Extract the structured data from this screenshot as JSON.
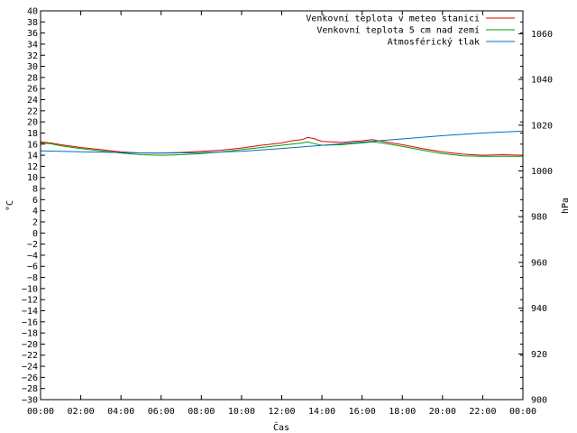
{
  "chart_data": {
    "type": "line",
    "xlabel": "Čas",
    "ylabel": "°C",
    "y2label": "hPa",
    "x_ticks": [
      "00:00",
      "02:00",
      "04:00",
      "06:00",
      "08:00",
      "10:00",
      "12:00",
      "14:00",
      "16:00",
      "18:00",
      "20:00",
      "22:00",
      "00:00"
    ],
    "x_range_hours": [
      0,
      24
    ],
    "ylim": [
      -30,
      40
    ],
    "y_step": 2,
    "y2lim": [
      900,
      1070
    ],
    "y2_ticks": [
      900,
      920,
      940,
      960,
      980,
      1000,
      1020,
      1040,
      1060
    ],
    "grid": false,
    "legend_position": "top-right",
    "series": [
      {
        "name": "Venkovní teplota v meteo stanici",
        "axis": "left",
        "color": "#e00000",
        "x": [
          0,
          0.5,
          1,
          2,
          3,
          4,
          5,
          6,
          7,
          8,
          9,
          10,
          11,
          12,
          12.5,
          13,
          13.3,
          13.6,
          14,
          15,
          15.5,
          16,
          16.5,
          17,
          18,
          19,
          20,
          21,
          22,
          23,
          24
        ],
        "y": [
          16.4,
          16.2,
          15.9,
          15.4,
          15.0,
          14.6,
          14.4,
          14.4,
          14.5,
          14.7,
          14.9,
          15.3,
          15.8,
          16.2,
          16.6,
          16.8,
          17.2,
          17.0,
          16.5,
          16.3,
          16.5,
          16.6,
          16.8,
          16.5,
          15.9,
          15.2,
          14.6,
          14.2,
          14.0,
          14.1,
          14.0
        ]
      },
      {
        "name": "Venkovní teplota 5 cm nad zemí",
        "axis": "left",
        "color": "#00a000",
        "x": [
          0,
          0.5,
          1,
          2,
          3,
          4,
          5,
          6,
          7,
          8,
          9,
          10,
          11,
          12,
          12.5,
          13,
          13.3,
          13.6,
          14,
          15,
          15.5,
          16,
          16.5,
          17,
          18,
          19,
          20,
          21,
          22,
          23,
          24
        ],
        "y": [
          16.2,
          16.1,
          15.7,
          15.2,
          14.8,
          14.4,
          14.1,
          14.0,
          14.1,
          14.3,
          14.6,
          15.0,
          15.4,
          15.8,
          16.0,
          16.2,
          16.4,
          16.1,
          15.8,
          15.9,
          16.1,
          16.2,
          16.4,
          16.2,
          15.6,
          14.9,
          14.3,
          13.9,
          13.8,
          13.8,
          13.8
        ]
      },
      {
        "name": "Atmosférický tlak",
        "axis": "right",
        "color": "#0070c0",
        "x": [
          0,
          2,
          4,
          6,
          8,
          10,
          12,
          14,
          16,
          18,
          20,
          22,
          24
        ],
        "y": [
          1008.8,
          1008.4,
          1008.0,
          1007.8,
          1008.0,
          1008.6,
          1009.8,
          1011.2,
          1012.6,
          1014.0,
          1015.4,
          1016.6,
          1017.4
        ]
      }
    ]
  }
}
